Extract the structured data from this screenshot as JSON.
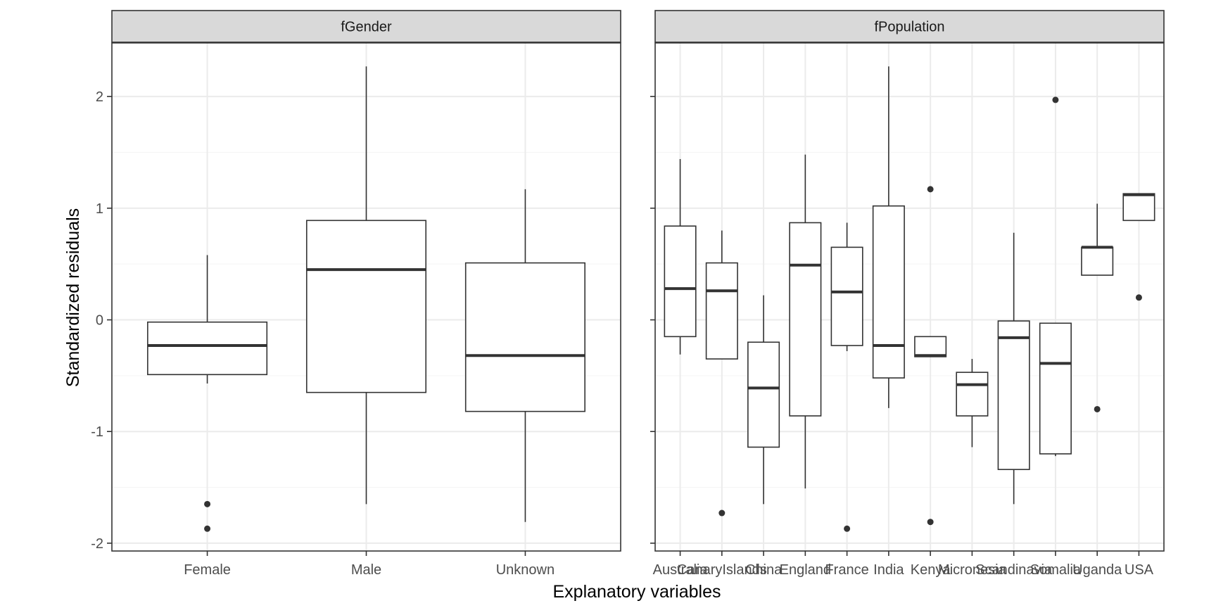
{
  "chart_data": {
    "type": "boxplot",
    "xlabel": "Explanatory variables",
    "ylabel": "Standardized residuals",
    "ylim": [
      -2.07,
      2.48
    ],
    "yticks": [
      -2,
      -1,
      0,
      1,
      2
    ],
    "ytick_labels": [
      "-2",
      "-1",
      "0",
      "1",
      "2"
    ],
    "grid": true,
    "colors": {
      "strip_fill": "#d9d9d9",
      "grid_major": "#ebebeb",
      "grid_minor": "#f5f5f5",
      "box_stroke": "#333333",
      "panel_border": "#333333"
    },
    "panels": [
      {
        "strip": "fGender",
        "categories": [
          "Female",
          "Male",
          "Unknown"
        ],
        "boxes": [
          {
            "lower_whisker": -0.57,
            "q1": -0.49,
            "median": -0.23,
            "q3": -0.02,
            "upper_whisker": 0.58,
            "outliers": [
              -1.65,
              -1.87
            ]
          },
          {
            "lower_whisker": -1.65,
            "q1": -0.65,
            "median": 0.45,
            "q3": 0.89,
            "upper_whisker": 2.27,
            "outliers": []
          },
          {
            "lower_whisker": -1.81,
            "q1": -0.82,
            "median": -0.32,
            "q3": 0.51,
            "upper_whisker": 1.17,
            "outliers": []
          }
        ]
      },
      {
        "strip": "fPopulation",
        "categories": [
          "Australia",
          "CanaryIslands",
          "China",
          "England",
          "France",
          "India",
          "Kenya",
          "Micronesia",
          "Scandinavia",
          "Somalia",
          "Uganda",
          "USA"
        ],
        "boxes": [
          {
            "lower_whisker": -0.31,
            "q1": -0.15,
            "median": 0.28,
            "q3": 0.84,
            "upper_whisker": 1.44,
            "outliers": []
          },
          {
            "lower_whisker": -0.35,
            "q1": -0.35,
            "median": 0.26,
            "q3": 0.51,
            "upper_whisker": 0.8,
            "outliers": [
              -1.73
            ]
          },
          {
            "lower_whisker": -1.65,
            "q1": -1.14,
            "median": -0.61,
            "q3": -0.2,
            "upper_whisker": 0.22,
            "outliers": []
          },
          {
            "lower_whisker": -1.51,
            "q1": -0.86,
            "median": 0.49,
            "q3": 0.87,
            "upper_whisker": 1.48,
            "outliers": []
          },
          {
            "lower_whisker": -0.28,
            "q1": -0.23,
            "median": 0.25,
            "q3": 0.65,
            "upper_whisker": 0.87,
            "outliers": [
              -1.87
            ]
          },
          {
            "lower_whisker": -0.79,
            "q1": -0.52,
            "median": -0.23,
            "q3": 1.02,
            "upper_whisker": 2.27,
            "outliers": []
          },
          {
            "lower_whisker": -0.33,
            "q1": -0.33,
            "median": -0.32,
            "q3": -0.15,
            "upper_whisker": -0.15,
            "outliers": [
              1.17,
              -1.81
            ]
          },
          {
            "lower_whisker": -1.14,
            "q1": -0.86,
            "median": -0.58,
            "q3": -0.47,
            "upper_whisker": -0.35,
            "outliers": []
          },
          {
            "lower_whisker": -1.65,
            "q1": -1.34,
            "median": -0.16,
            "q3": -0.01,
            "upper_whisker": 0.78,
            "outliers": []
          },
          {
            "lower_whisker": -1.22,
            "q1": -1.2,
            "median": -0.39,
            "q3": -0.03,
            "upper_whisker": -0.03,
            "outliers": [
              1.97
            ]
          },
          {
            "lower_whisker": 0.4,
            "q1": 0.4,
            "median": 0.65,
            "q3": 0.65,
            "upper_whisker": 1.04,
            "outliers": [
              -0.8
            ]
          },
          {
            "lower_whisker": 0.89,
            "q1": 0.89,
            "median": 1.12,
            "q3": 1.13,
            "upper_whisker": 1.13,
            "outliers": [
              0.2
            ]
          }
        ]
      }
    ]
  }
}
